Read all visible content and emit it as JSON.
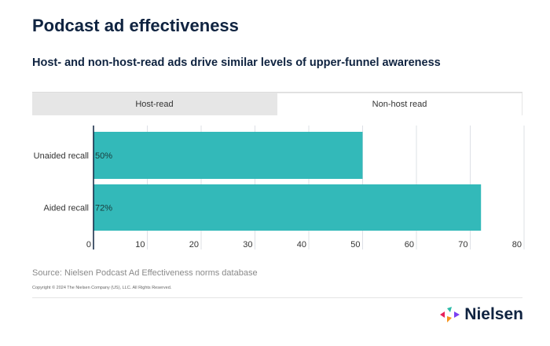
{
  "title": "Podcast ad effectiveness",
  "subtitle": "Host- and non-host-read ads drive similar levels of upper-funnel awareness",
  "tabs": [
    {
      "label": "Host-read",
      "active": false
    },
    {
      "label": "Non-host read",
      "active": true
    }
  ],
  "chart_data": {
    "type": "bar",
    "orientation": "horizontal",
    "categories": [
      "Unaided recall",
      "Aided recall"
    ],
    "values": [
      50,
      72
    ],
    "data_labels": [
      "50%",
      "72%"
    ],
    "xlim": [
      0,
      80
    ],
    "xticks": [
      "0",
      "10",
      "20",
      "30",
      "40",
      "50",
      "60",
      "70",
      "80"
    ],
    "grid": true,
    "bar_color": "#33b9b9"
  },
  "source": "Source: Nielsen Podcast Ad Effectiveness norms database",
  "copyright": "Copyright © 2024 The Nielsen Company (US), LLC. All Rights Reserved.",
  "logo": {
    "text": "Nielsen"
  }
}
